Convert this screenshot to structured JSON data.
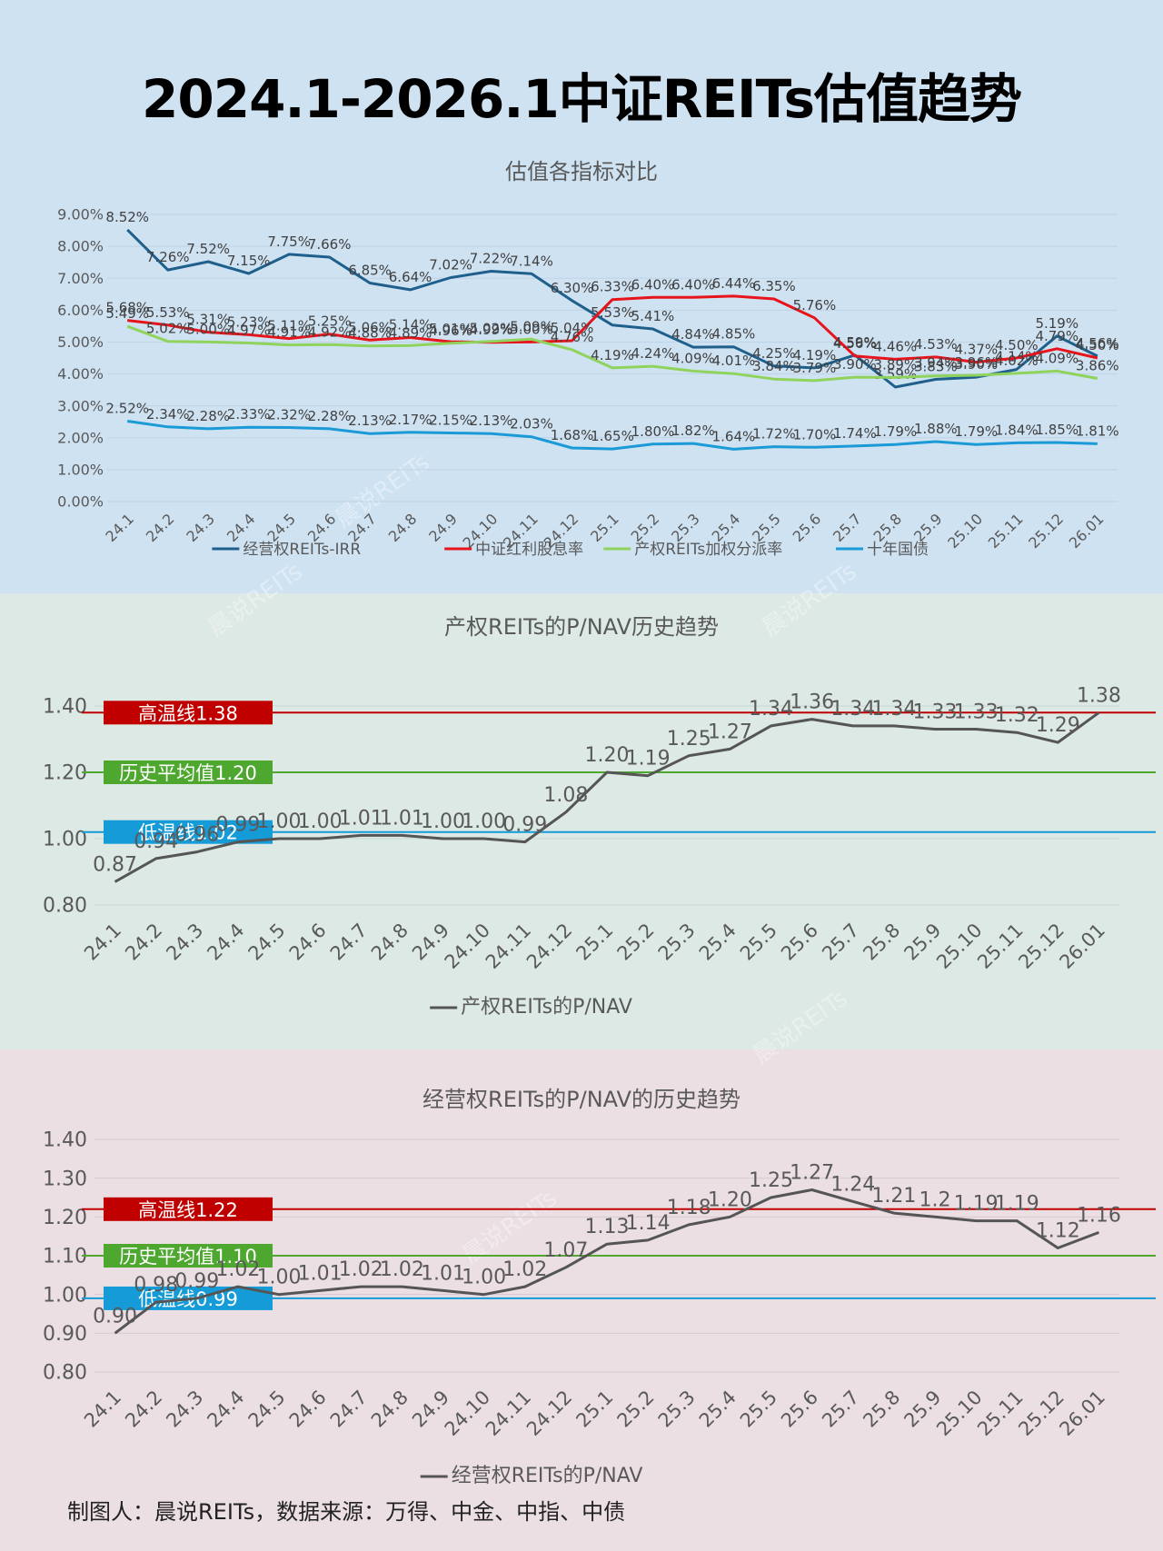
{
  "title": "2024.1-2026.1中证REITs估值趋势",
  "footer": "制图人：晨说REITs，数据来源：万得、中金、中指、中债",
  "watermark": "晨说REITs",
  "chart_data": [
    {
      "type": "line",
      "title": "估值各指标对比",
      "categories": [
        "24.1",
        "24.2",
        "24.3",
        "24.4",
        "24.5",
        "24.6",
        "24.7",
        "24.8",
        "24.9",
        "24.10",
        "24.11",
        "24.12",
        "25.1",
        "25.2",
        "25.3",
        "25.4",
        "25.5",
        "25.6",
        "25.7",
        "25.8",
        "25.9",
        "25.10",
        "25.11",
        "25.12",
        "26.01"
      ],
      "ylim": [
        0,
        9
      ],
      "yticks": [
        "0.00%",
        "1.00%",
        "2.00%",
        "3.00%",
        "4.00%",
        "5.00%",
        "6.00%",
        "7.00%",
        "8.00%",
        "9.00%"
      ],
      "legend_position": "bottom",
      "series": [
        {
          "name": "经营权REITs-IRR",
          "color": "#1f5f8b",
          "values": [
            8.52,
            7.26,
            7.52,
            7.15,
            7.75,
            7.66,
            6.85,
            6.64,
            7.02,
            7.22,
            7.14,
            6.3,
            5.53,
            5.41,
            4.84,
            4.85,
            4.25,
            4.19,
            4.59,
            3.59,
            3.83,
            3.9,
            4.14,
            5.19,
            4.56
          ],
          "labels": [
            "8.52%",
            "7.26%",
            "7.52%",
            "7.15%",
            "7.75%",
            "7.66%",
            "6.85%",
            "6.64%",
            "7.02%",
            "7.22%",
            "7.14%",
            "6.30%",
            "5.53%",
            "5.41%",
            "4.84%",
            "4.85%",
            "4.25%",
            "4.19%",
            "4.59%",
            "3.59%",
            "3.83%",
            "3.90%",
            "4.14%",
            "5.19%",
            "4.56%"
          ]
        },
        {
          "name": "中证红利股息率",
          "color": "#e8141b",
          "values": [
            5.68,
            5.53,
            5.31,
            5.23,
            5.11,
            5.25,
            5.06,
            5.14,
            5.01,
            4.99,
            5.0,
            5.04,
            6.33,
            6.4,
            6.4,
            6.44,
            6.35,
            5.76,
            4.56,
            4.46,
            4.53,
            4.37,
            4.5,
            4.79,
            4.5
          ],
          "labels": [
            "5.68%",
            "5.53%",
            "5.31%",
            "5.23%",
            "5.11%",
            "5.25%",
            "5.06%",
            "5.14%",
            "5.01%",
            "4.99%",
            "5.00%",
            "5.04%",
            "6.33%",
            "6.40%",
            "6.40%",
            "6.44%",
            "6.35%",
            "5.76%",
            "4.56%",
            "4.46%",
            "4.53%",
            "4.37%",
            "4.50%",
            "4.79%",
            "4.50%"
          ]
        },
        {
          "name": "产权REITs加权分派率",
          "color": "#8fd35c",
          "values": [
            5.49,
            5.02,
            5.0,
            4.97,
            4.91,
            4.92,
            4.88,
            4.89,
            4.96,
            5.02,
            5.09,
            4.76,
            4.19,
            4.24,
            4.09,
            4.01,
            3.84,
            3.79,
            3.9,
            3.89,
            3.94,
            3.96,
            4.02,
            4.09,
            3.86
          ],
          "labels": [
            "5.49%",
            "5.02%",
            "5.00%",
            "4.97%",
            "4.91%",
            "4.92%",
            "4.88%",
            "4.89%",
            "4.96%",
            "5.02%",
            "5.09%",
            "4.76%",
            "4.19%",
            "4.24%",
            "4.09%",
            "4.01%",
            "3.84%",
            "3.79%",
            "3.90%",
            "3.89%",
            "3.94%",
            "3.96%",
            "4.02%",
            "4.09%",
            "3.86%"
          ]
        },
        {
          "name": "十年国债",
          "color": "#1a9ad6",
          "values": [
            2.52,
            2.34,
            2.28,
            2.33,
            2.32,
            2.28,
            2.13,
            2.17,
            2.15,
            2.13,
            2.03,
            1.68,
            1.65,
            1.8,
            1.82,
            1.64,
            1.72,
            1.7,
            1.74,
            1.79,
            1.88,
            1.79,
            1.84,
            1.85,
            1.81
          ],
          "labels": [
            "2.52%",
            "2.34%",
            "2.28%",
            "2.33%",
            "2.32%",
            "2.28%",
            "2.13%",
            "2.17%",
            "2.15%",
            "2.13%",
            "2.03%",
            "1.68%",
            "1.65%",
            "1.80%",
            "1.82%",
            "1.64%",
            "1.72%",
            "1.70%",
            "1.74%",
            "1.79%",
            "1.88%",
            "1.79%",
            "1.84%",
            "1.85%",
            "1.81%"
          ]
        }
      ]
    },
    {
      "type": "line",
      "title": "产权REITs的P/NAV历史趋势",
      "categories": [
        "24.1",
        "24.2",
        "24.3",
        "24.4",
        "24.5",
        "24.6",
        "24.7",
        "24.8",
        "24.9",
        "24.10",
        "24.11",
        "24.12",
        "25.1",
        "25.2",
        "25.3",
        "25.4",
        "25.5",
        "25.6",
        "25.7",
        "25.8",
        "25.9",
        "25.10",
        "25.11",
        "25.12",
        "26.01"
      ],
      "ylim": [
        0.8,
        1.4
      ],
      "yticks": [
        "0.80",
        "1.00",
        "1.20",
        "1.40"
      ],
      "legend_position": "bottom",
      "series": [
        {
          "name": "产权REITs的P/NAV",
          "color": "#555555",
          "values": [
            0.87,
            0.94,
            0.96,
            0.99,
            1.0,
            1.0,
            1.01,
            1.01,
            1.0,
            1.0,
            0.99,
            1.08,
            1.2,
            1.19,
            1.25,
            1.27,
            1.34,
            1.36,
            1.34,
            1.34,
            1.33,
            1.33,
            1.32,
            1.29,
            1.38
          ],
          "labels": [
            "0.87",
            "0.94",
            "0.96",
            "0.99",
            "1.00",
            "1.00",
            "1.01",
            "1.01",
            "1.00",
            "1.00",
            "0.99",
            "1.08",
            "1.20",
            "1.19",
            "1.25",
            "1.27",
            "1.34",
            "1.36",
            "1.34",
            "1.34",
            "1.33",
            "1.33",
            "1.32",
            "1.29",
            "1.38"
          ]
        }
      ],
      "reference_lines": [
        {
          "label": "高温线1.38",
          "value": 1.38,
          "color": "#c00000"
        },
        {
          "label": "历史平均值1.20",
          "value": 1.2,
          "color": "#4ea72e"
        },
        {
          "label": "低温线1.02",
          "value": 1.02,
          "color": "#159bd7"
        }
      ]
    },
    {
      "type": "line",
      "title": "经营权REITs的P/NAV的历史趋势",
      "categories": [
        "24.1",
        "24.2",
        "24.3",
        "24.4",
        "24.5",
        "24.6",
        "24.7",
        "24.8",
        "24.9",
        "24.10",
        "24.11",
        "24.12",
        "25.1",
        "25.2",
        "25.3",
        "25.4",
        "25.5",
        "25.6",
        "25.7",
        "25.8",
        "25.9",
        "25.10",
        "25.11",
        "25.12",
        "26.01"
      ],
      "ylim": [
        0.8,
        1.4
      ],
      "yticks": [
        "0.80",
        "0.90",
        "1.00",
        "1.10",
        "1.20",
        "1.30",
        "1.40"
      ],
      "legend_position": "bottom",
      "series": [
        {
          "name": "经营权REITs的P/NAV",
          "color": "#555555",
          "values": [
            0.9,
            0.98,
            0.99,
            1.02,
            1.0,
            1.01,
            1.02,
            1.02,
            1.01,
            1.0,
            1.02,
            1.07,
            1.13,
            1.14,
            1.18,
            1.2,
            1.25,
            1.27,
            1.24,
            1.21,
            1.2,
            1.19,
            1.19,
            1.12,
            1.16
          ],
          "labels": [
            "0.90",
            "0.98",
            "0.99",
            "1.02",
            "1.00",
            "1.01",
            "1.02",
            "1.02",
            "1.01",
            "1.00",
            "1.02",
            "1.07",
            "1.13",
            "1.14",
            "1.18",
            "1.20",
            "1.25",
            "1.27",
            "1.24",
            "1.21",
            "1.2",
            "1.19",
            "1.19",
            "1.12",
            "1.16"
          ]
        }
      ],
      "reference_lines": [
        {
          "label": "高温线1.22",
          "value": 1.22,
          "color": "#c00000"
        },
        {
          "label": "历史平均值1.10",
          "value": 1.1,
          "color": "#4ea72e"
        },
        {
          "label": "低温线0.99",
          "value": 0.99,
          "color": "#159bd7"
        }
      ]
    }
  ]
}
